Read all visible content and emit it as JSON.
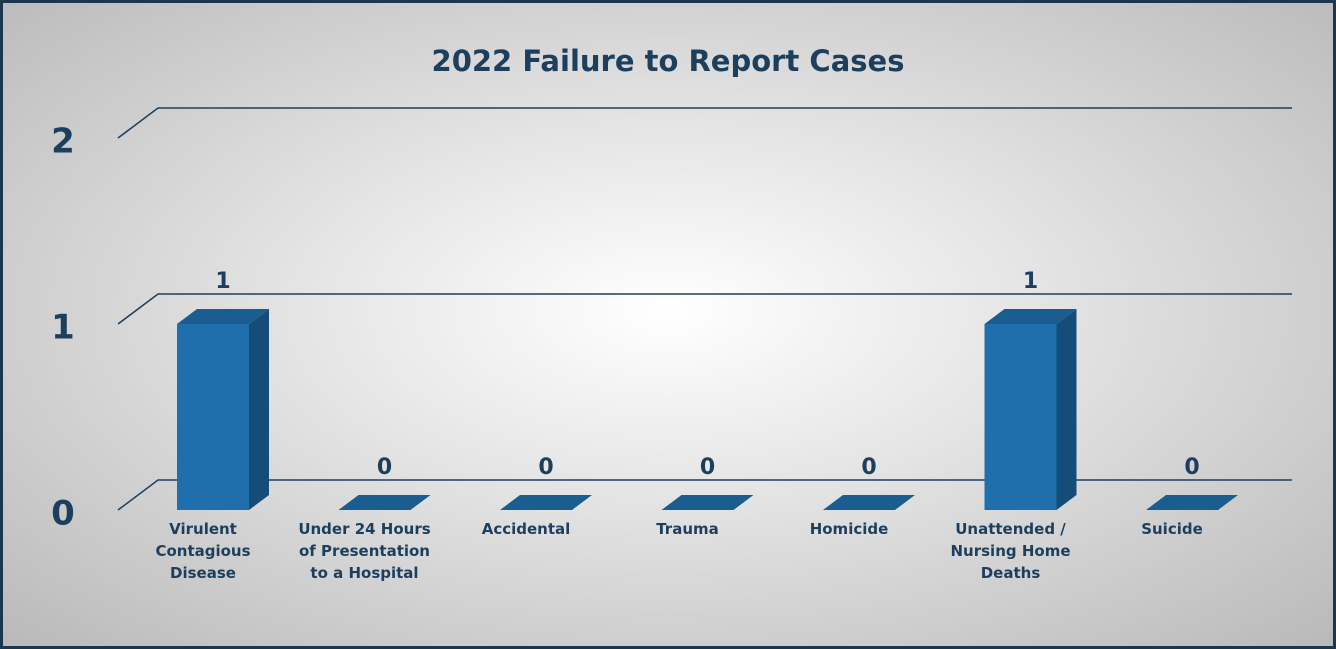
{
  "chart_data": {
    "type": "bar3d",
    "title": "2022 Failure to Report Cases",
    "categories": [
      "Virulent Contagious Disease",
      "Under 24 Hours of Presentation to a Hospital",
      "Accidental",
      "Trauma",
      "Homicide",
      "Unattended / Nursing Home Deaths",
      "Suicide"
    ],
    "values": [
      1,
      0,
      0,
      0,
      0,
      1,
      0
    ],
    "color": "#1f6fad",
    "ylim": [
      0,
      2
    ],
    "yticks": [
      0,
      1,
      2
    ],
    "grid": true
  }
}
